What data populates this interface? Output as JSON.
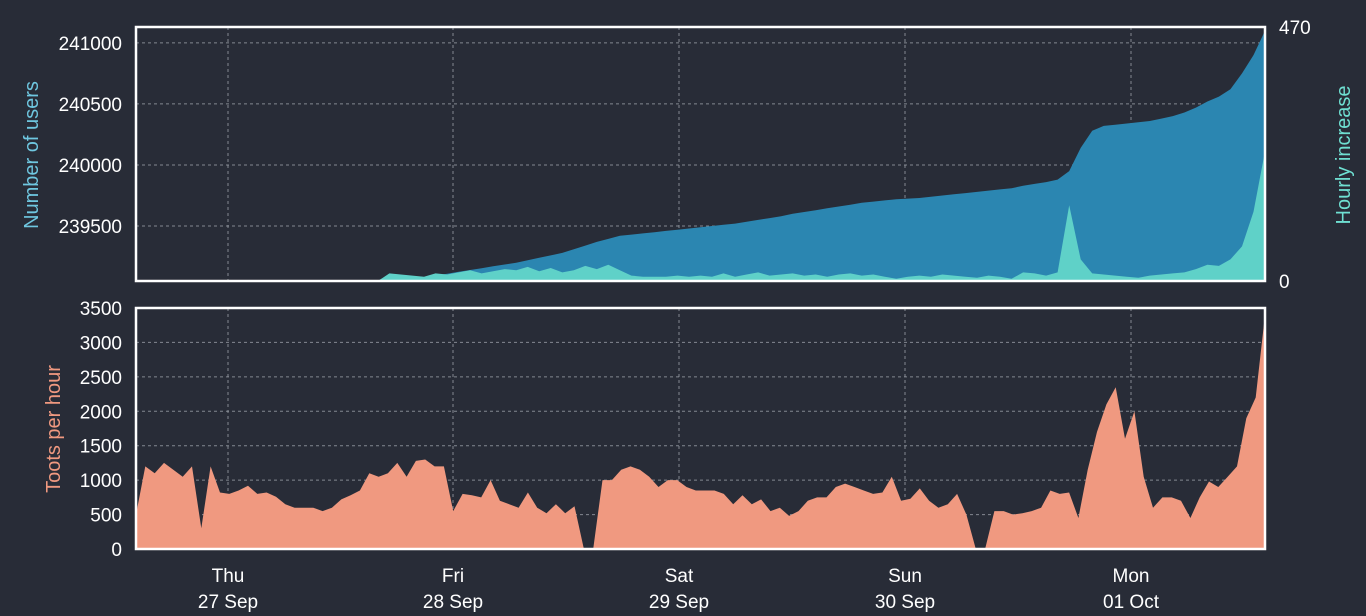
{
  "chart_data": [
    {
      "type": "area",
      "ylabel": "Number of users",
      "y2label": "Hourly increase",
      "ylim": [
        239050,
        241130
      ],
      "yticks": [
        "239500",
        "240000",
        "240500",
        "241000"
      ],
      "y2lim": [
        0,
        470
      ],
      "y2_tick_labels": [
        "0",
        "470"
      ],
      "grid": true,
      "colors": {
        "users": "#2b86b1",
        "increase": "#5fd1c8",
        "axis_left": "#6fc7e0",
        "axis_right": "#6fe0d2"
      },
      "x_start_day": 0,
      "x_step_hours": 2,
      "users": [
        239050,
        239050,
        239050,
        239050,
        239050,
        239050,
        239050,
        239050,
        239050,
        239050,
        239050,
        239050,
        239050,
        239050,
        239050,
        239050,
        239050,
        239050,
        239050,
        239050,
        239050,
        239050,
        239055,
        239060,
        239070,
        239080,
        239095,
        239110,
        239125,
        239140,
        239155,
        239170,
        239185,
        239200,
        239220,
        239240,
        239260,
        239280,
        239310,
        239340,
        239370,
        239395,
        239420,
        239430,
        239440,
        239450,
        239460,
        239470,
        239480,
        239490,
        239500,
        239510,
        239520,
        239535,
        239550,
        239565,
        239580,
        239600,
        239615,
        239630,
        239645,
        239660,
        239675,
        239690,
        239700,
        239710,
        239720,
        239725,
        239730,
        239740,
        239750,
        239760,
        239770,
        239780,
        239790,
        239800,
        239810,
        239830,
        239845,
        239860,
        239880,
        239950,
        240140,
        240280,
        240320,
        240330,
        240340,
        240350,
        240360,
        240380,
        240400,
        240430,
        240470,
        240520,
        240560,
        240620,
        240750,
        240900,
        241100
      ],
      "increase": [
        0,
        0,
        0,
        0,
        0,
        0,
        0,
        0,
        0,
        0,
        0,
        0,
        0,
        0,
        0,
        0,
        0,
        0,
        0,
        0,
        0,
        0,
        14,
        12,
        10,
        8,
        14,
        12,
        16,
        20,
        14,
        18,
        22,
        20,
        26,
        18,
        24,
        16,
        20,
        28,
        22,
        30,
        20,
        10,
        8,
        8,
        8,
        10,
        8,
        10,
        8,
        14,
        8,
        12,
        16,
        10,
        12,
        14,
        10,
        12,
        8,
        12,
        14,
        10,
        12,
        8,
        4,
        8,
        10,
        8,
        12,
        10,
        8,
        6,
        10,
        8,
        4,
        16,
        14,
        10,
        16,
        140,
        40,
        14,
        12,
        10,
        8,
        6,
        10,
        12,
        14,
        16,
        22,
        30,
        28,
        40,
        64,
        128,
        240
      ]
    },
    {
      "type": "area",
      "ylabel": "Toots per hour",
      "ylim": [
        0,
        3500
      ],
      "yticks": [
        "0",
        "500",
        "1000",
        "1500",
        "2000",
        "2500",
        "3000",
        "3500"
      ],
      "grid": true,
      "colors": {
        "toots": "#f09980",
        "axis_left": "#f09980"
      },
      "x_start_day": 0,
      "x_step_hours": 2,
      "toots": [
        500,
        1200,
        1100,
        1250,
        1150,
        1050,
        1200,
        300,
        1200,
        820,
        800,
        850,
        920,
        800,
        820,
        760,
        650,
        600,
        600,
        600,
        550,
        600,
        720,
        780,
        850,
        1100,
        1050,
        1100,
        1250,
        1050,
        1280,
        1300,
        1200,
        1200,
        550,
        800,
        780,
        750,
        1000,
        700,
        650,
        600,
        820,
        600,
        520,
        650,
        520,
        620,
        0,
        0,
        1000,
        1000,
        1150,
        1200,
        1150,
        1050,
        900,
        1000,
        1000,
        900,
        850,
        850,
        850,
        800,
        650,
        780,
        650,
        720,
        550,
        600,
        480,
        550,
        700,
        750,
        750,
        900,
        950,
        900,
        850,
        800,
        820,
        1050,
        700,
        730,
        880,
        700,
        600,
        650,
        800,
        500,
        0,
        0,
        550,
        550,
        500,
        520,
        550,
        600,
        850,
        800,
        820,
        450,
        1150,
        1700,
        2100,
        2350,
        1600,
        2000,
        1050,
        600,
        750,
        750,
        700,
        450,
        750,
        980,
        900,
        1050,
        1200,
        1900,
        2200,
        3400
      ]
    }
  ],
  "x_axis": {
    "ticks": [
      {
        "day": "Thu",
        "date": "27 Sep"
      },
      {
        "day": "Fri",
        "date": "28 Sep"
      },
      {
        "day": "Sat",
        "date": "29 Sep"
      },
      {
        "day": "Sun",
        "date": "30 Sep"
      },
      {
        "day": "Mon",
        "date": "01 Oct"
      }
    ]
  }
}
